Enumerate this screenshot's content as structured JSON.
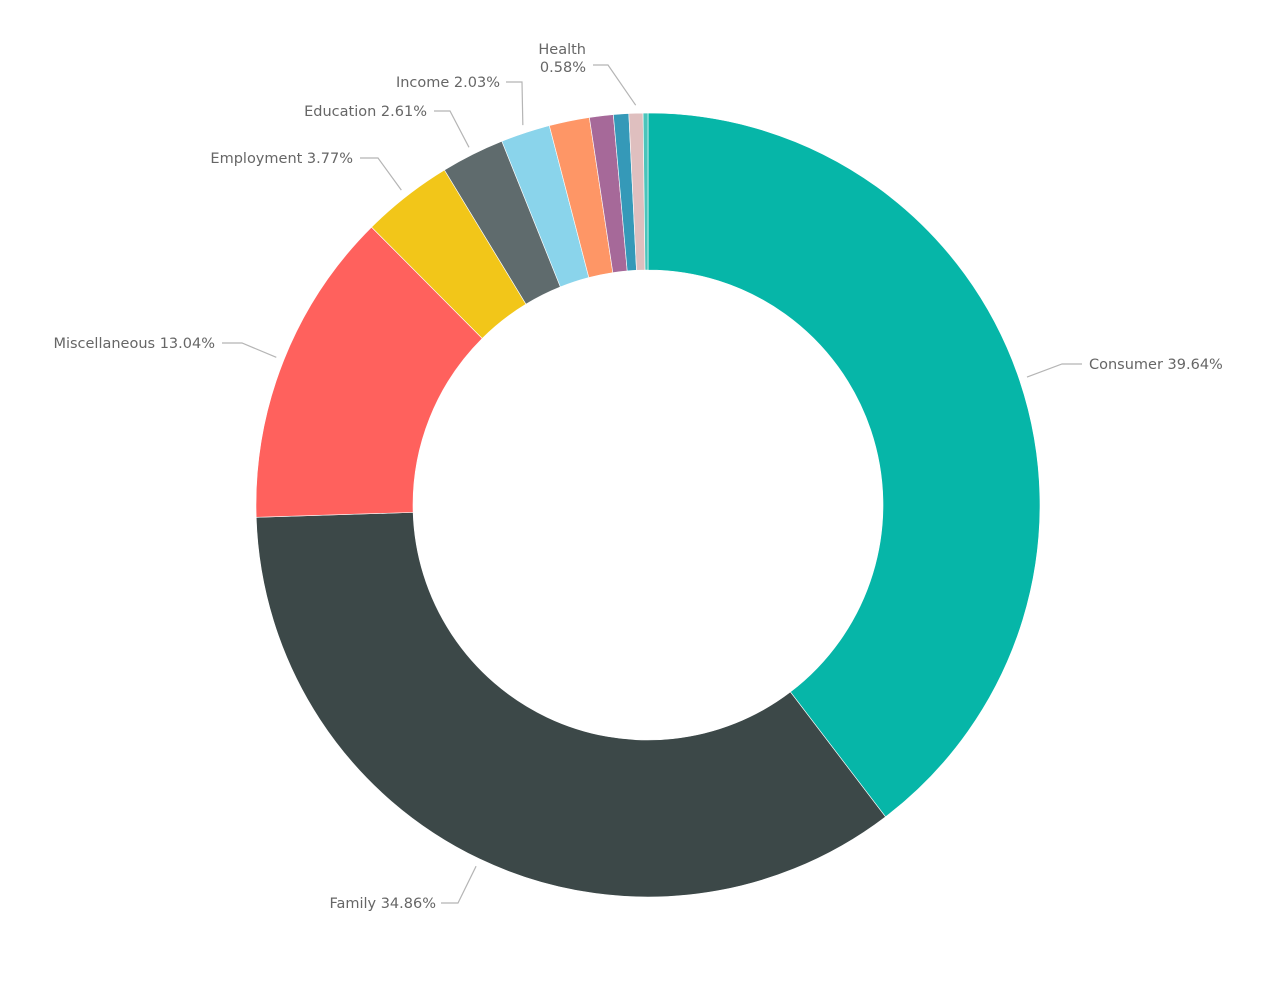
{
  "chart_data": {
    "type": "donut",
    "title": "",
    "slices": [
      {
        "name": "Consumer",
        "value": 39.64,
        "label": "Consumer 39.64%",
        "color": "#06B6A8"
      },
      {
        "name": "Family",
        "value": 34.86,
        "label": "Family 34.86%",
        "color": "#3C4848"
      },
      {
        "name": "Miscellaneous",
        "value": 13.04,
        "label": "Miscellaneous 13.04%",
        "color": "#FF615D"
      },
      {
        "name": "Employment",
        "value": 3.77,
        "label": "Employment 3.77%",
        "color": "#F2C619"
      },
      {
        "name": "Education",
        "value": 2.61,
        "label": "Education 2.61%",
        "color": "#5F6B6D"
      },
      {
        "name": "Income",
        "value": 2.03,
        "label": "Income 2.03%",
        "color": "#8AD4EB"
      },
      {
        "name": "",
        "value": 1.66,
        "label": "",
        "color": "#FE9666"
      },
      {
        "name": "",
        "value": 0.98,
        "label": "",
        "color": "#A66999"
      },
      {
        "name": "",
        "value": 0.63,
        "label": "",
        "color": "#3599B8"
      },
      {
        "name": "Health",
        "value": 0.58,
        "label": "Health 0.58%",
        "color": "#DFBFBF",
        "label_lines": [
          "Health",
          "0.58%"
        ]
      },
      {
        "name": "",
        "value": 0.2,
        "label": "",
        "color": "#4AC5BB"
      }
    ]
  }
}
